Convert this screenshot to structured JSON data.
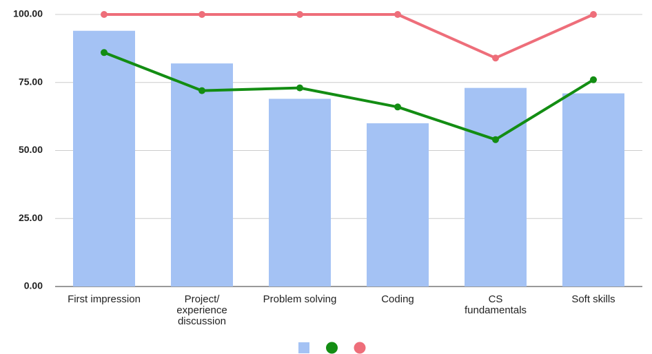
{
  "chart_data": {
    "type": "combo",
    "categories": [
      "First impression",
      "Project/\nexperience\ndiscussion",
      "Problem solving",
      "Coding",
      "CS\nfundamentals",
      "Soft skills"
    ],
    "series": [
      {
        "type": "bar",
        "color": "#a4c2f4",
        "values": [
          94,
          82,
          69,
          60,
          73,
          71
        ]
      },
      {
        "type": "line",
        "color": "#138d13",
        "values": [
          86,
          72,
          73,
          66,
          54,
          76
        ]
      },
      {
        "type": "line",
        "color": "#ee6e7a",
        "values": [
          100,
          100,
          100,
          100,
          84,
          100
        ]
      }
    ],
    "ylim": [
      0,
      100
    ],
    "yticks": [
      {
        "value": 0,
        "label": "0.00"
      },
      {
        "value": 25,
        "label": "25.00"
      },
      {
        "value": 50,
        "label": "50.00"
      },
      {
        "value": 75,
        "label": "75.00"
      },
      {
        "value": 100,
        "label": "100.00"
      }
    ],
    "grid": true,
    "legend": "bottom"
  }
}
